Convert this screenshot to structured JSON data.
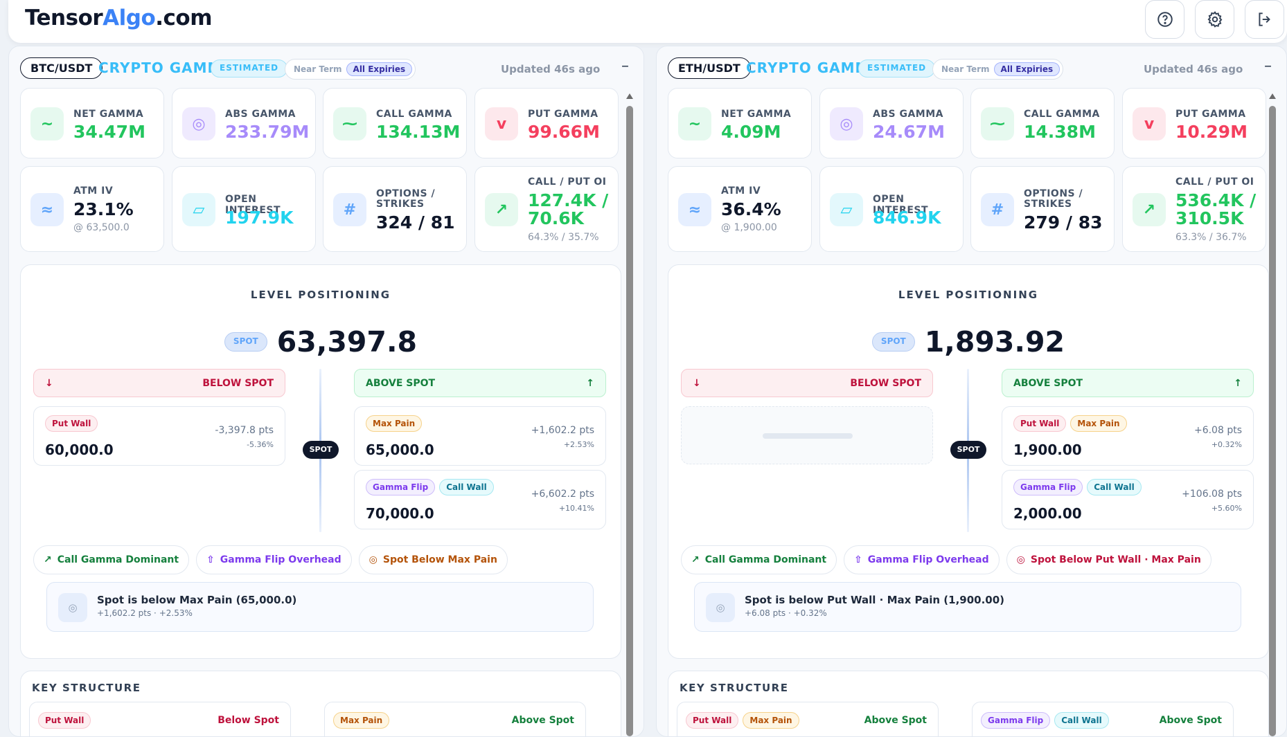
{
  "app": {
    "logo_part1": "Tensor",
    "logo_part2": "Algo",
    "logo_part3": ".com"
  },
  "header_icons": [
    "help-icon",
    "settings-gear-icon",
    "logout-icon"
  ],
  "colors": {
    "brand_blue": "#3b82f6",
    "green": "#22c55e",
    "red": "#f43f5e",
    "purple": "#a78bfa",
    "cyan": "#22d3ee",
    "accent_title": "#38bdf8"
  },
  "panels": [
    {
      "pair": "BTC/USDT",
      "title": "CRYPTO GAMMA",
      "badge": "ESTIMATED",
      "expiry_options": [
        "Near Term",
        "All Expiries"
      ],
      "expiry_selected": "All Expiries",
      "updated": "Updated 46s ago",
      "collapse": "–",
      "stats": {
        "net_gamma": {
          "label": "NET GAMMA",
          "value": "34.47M",
          "icon": "~"
        },
        "abs_gamma": {
          "label": "ABS GAMMA",
          "value": "233.79M",
          "icon": "◎"
        },
        "call_gamma": {
          "label": "CALL GAMMA",
          "value": "134.13M",
          "icon": "⁓"
        },
        "put_gamma": {
          "label": "PUT GAMMA",
          "value": "99.66M",
          "icon": "v"
        },
        "atm_iv": {
          "label": "ATM IV",
          "value": "23.1%",
          "sub": "@ 63,500.0",
          "icon": "≈"
        },
        "open_interest": {
          "label": "OPEN INTEREST",
          "value": "197.9K",
          "icon": "▱"
        },
        "options_strikes": {
          "label1": "OPTIONS /",
          "label2": "STRIKES",
          "value": "324 / 81",
          "icon": "#"
        },
        "call_put_oi": {
          "label": "CALL / PUT OI",
          "value1": "127.4K /",
          "value2": "70.6K",
          "sub": "64.3% / 35.7%",
          "icon": "↗"
        }
      },
      "levels": {
        "title": "LEVEL POSITIONING",
        "spot_label": "SPOT",
        "spot_value": "63,397.8",
        "below_label": "BELOW SPOT",
        "above_label": "ABOVE SPOT",
        "below_arrow": "↓",
        "above_arrow": "↑",
        "marker": "SPOT",
        "below_cards": [
          {
            "tags": [
              "Put Wall"
            ],
            "price": "60,000.0",
            "pts": "-3,397.8 pts",
            "pct": "-5.36%"
          }
        ],
        "above_cards": [
          {
            "tags": [
              "Max Pain"
            ],
            "price": "65,000.0",
            "pts": "+1,602.2 pts",
            "pct": "+2.53%"
          },
          {
            "tags": [
              "Gamma Flip",
              "Call Wall"
            ],
            "price": "70,000.0",
            "pts": "+6,602.2 pts",
            "pct": "+10.41%"
          }
        ],
        "chips": [
          {
            "icon": "↗",
            "label": "Call Gamma Dominant"
          },
          {
            "icon": "⇧",
            "label": "Gamma Flip Overhead"
          },
          {
            "icon": "◎",
            "label": "Spot Below Max Pain"
          }
        ],
        "note_title": "Spot is below Max Pain (65,000.0)",
        "note_sub": "+1,602.2 pts · +2.53%",
        "note_icon": "◎"
      },
      "key_structure": {
        "title": "KEY STRUCTURE",
        "cards": [
          {
            "tags": [
              "Put Wall"
            ],
            "position": "Below Spot"
          },
          {
            "tags": [
              "Max Pain"
            ],
            "position": "Above Spot"
          }
        ]
      }
    },
    {
      "pair": "ETH/USDT",
      "title": "CRYPTO GAMMA",
      "badge": "ESTIMATED",
      "expiry_options": [
        "Near Term",
        "All Expiries"
      ],
      "expiry_selected": "All Expiries",
      "updated": "Updated 46s ago",
      "collapse": "–",
      "stats": {
        "net_gamma": {
          "label": "NET GAMMA",
          "value": "4.09M",
          "icon": "~"
        },
        "abs_gamma": {
          "label": "ABS GAMMA",
          "value": "24.67M",
          "icon": "◎"
        },
        "call_gamma": {
          "label": "CALL GAMMA",
          "value": "14.38M",
          "icon": "⁓"
        },
        "put_gamma": {
          "label": "PUT GAMMA",
          "value": "10.29M",
          "icon": "v"
        },
        "atm_iv": {
          "label": "ATM IV",
          "value": "36.4%",
          "sub": "@ 1,900.00",
          "icon": "≈"
        },
        "open_interest": {
          "label": "OPEN INTEREST",
          "value": "846.9K",
          "icon": "▱"
        },
        "options_strikes": {
          "label1": "OPTIONS /",
          "label2": "STRIKES",
          "value": "279 / 83",
          "icon": "#"
        },
        "call_put_oi": {
          "label": "CALL / PUT OI",
          "value1": "536.4K /",
          "value2": "310.5K",
          "sub": "63.3% / 36.7%",
          "icon": "↗"
        }
      },
      "levels": {
        "title": "LEVEL POSITIONING",
        "spot_label": "SPOT",
        "spot_value": "1,893.92",
        "below_label": "BELOW SPOT",
        "above_label": "ABOVE SPOT",
        "below_arrow": "↓",
        "above_arrow": "↑",
        "marker": "SPOT",
        "below_cards": [],
        "above_cards": [
          {
            "tags": [
              "Put Wall",
              "Max Pain"
            ],
            "price": "1,900.00",
            "pts": "+6.08 pts",
            "pct": "+0.32%"
          },
          {
            "tags": [
              "Gamma Flip",
              "Call Wall"
            ],
            "price": "2,000.00",
            "pts": "+106.08 pts",
            "pct": "+5.60%"
          }
        ],
        "chips": [
          {
            "icon": "↗",
            "label": "Call Gamma Dominant"
          },
          {
            "icon": "⇧",
            "label": "Gamma Flip Overhead"
          },
          {
            "icon": "◎",
            "label": "Spot Below Put Wall · Max Pain"
          }
        ],
        "note_title": "Spot is below Put Wall · Max Pain (1,900.00)",
        "note_sub": "+6.08 pts · +0.32%",
        "note_icon": "◎"
      },
      "key_structure": {
        "title": "KEY STRUCTURE",
        "cards": [
          {
            "tags": [
              "Put Wall",
              "Max Pain"
            ],
            "position": "Above Spot"
          },
          {
            "tags": [
              "Gamma Flip",
              "Call Wall"
            ],
            "position": "Above Spot"
          }
        ]
      }
    }
  ]
}
